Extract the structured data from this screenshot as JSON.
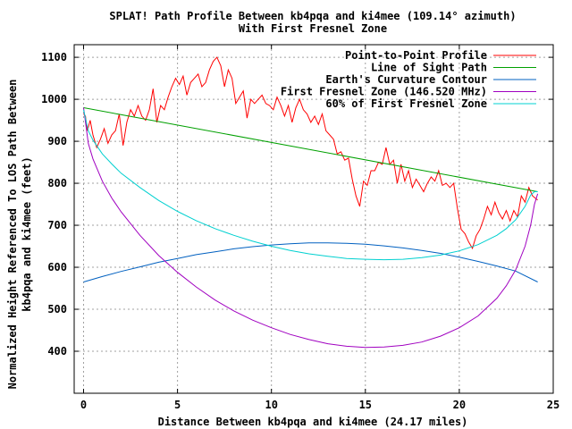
{
  "chart_data": {
    "type": "line",
    "title_line1": "SPLAT! Path Profile Between kb4pqa and ki4mee (109.14° azimuth)",
    "title_line2": "With First Fresnel Zone",
    "xlabel": "Distance Between kb4pqa and ki4mee (24.17 miles)",
    "ylabel_line1": "Normalized Height Referenced To LOS Path Between",
    "ylabel_line2": "kb4pqa and ki4mee (feet)",
    "xlim": [
      -0.5,
      25
    ],
    "ylim": [
      300,
      1130
    ],
    "xticks": [
      0,
      5,
      10,
      15,
      20,
      25
    ],
    "yticks": [
      400,
      500,
      600,
      700,
      800,
      900,
      1000,
      1100
    ],
    "grid": true,
    "legend_position": "top-right",
    "series": [
      {
        "name": "Point-to-Point Profile",
        "color": "#ff0000",
        "x": [
          0.0,
          0.1,
          0.2,
          0.35,
          0.5,
          0.7,
          0.9,
          1.1,
          1.3,
          1.5,
          1.7,
          1.9,
          2.1,
          2.3,
          2.5,
          2.7,
          2.9,
          3.1,
          3.3,
          3.5,
          3.7,
          3.9,
          4.1,
          4.3,
          4.5,
          4.7,
          4.9,
          5.1,
          5.3,
          5.5,
          5.7,
          5.9,
          6.1,
          6.3,
          6.5,
          6.7,
          6.9,
          7.1,
          7.3,
          7.5,
          7.7,
          7.9,
          8.1,
          8.3,
          8.5,
          8.7,
          8.9,
          9.1,
          9.3,
          9.5,
          9.7,
          9.9,
          10.1,
          10.3,
          10.5,
          10.7,
          10.9,
          11.1,
          11.3,
          11.5,
          11.7,
          11.9,
          12.1,
          12.3,
          12.5,
          12.7,
          12.9,
          13.1,
          13.3,
          13.5,
          13.7,
          13.9,
          14.1,
          14.3,
          14.5,
          14.7,
          14.9,
          15.1,
          15.3,
          15.5,
          15.7,
          15.9,
          16.1,
          16.3,
          16.5,
          16.7,
          16.9,
          17.1,
          17.3,
          17.5,
          17.7,
          17.9,
          18.1,
          18.3,
          18.5,
          18.7,
          18.9,
          19.1,
          19.3,
          19.5,
          19.7,
          19.9,
          20.1,
          20.3,
          20.5,
          20.7,
          20.9,
          21.1,
          21.3,
          21.5,
          21.7,
          21.9,
          22.1,
          22.3,
          22.5,
          22.7,
          22.9,
          23.1,
          23.3,
          23.5,
          23.7,
          23.9,
          24.17
        ],
        "y": [
          965,
          960,
          925,
          950,
          915,
          885,
          905,
          930,
          895,
          915,
          925,
          965,
          890,
          945,
          975,
          960,
          985,
          960,
          950,
          975,
          1025,
          945,
          985,
          975,
          1005,
          1030,
          1050,
          1035,
          1055,
          1010,
          1040,
          1050,
          1060,
          1030,
          1040,
          1070,
          1090,
          1100,
          1080,
          1030,
          1070,
          1050,
          990,
          1005,
          1020,
          955,
          1000,
          990,
          1000,
          1010,
          990,
          985,
          975,
          1005,
          985,
          960,
          985,
          945,
          980,
          1000,
          975,
          965,
          945,
          960,
          940,
          965,
          925,
          915,
          905,
          870,
          875,
          855,
          860,
          810,
          770,
          745,
          805,
          795,
          830,
          830,
          850,
          845,
          885,
          845,
          855,
          800,
          845,
          805,
          830,
          790,
          810,
          795,
          780,
          800,
          815,
          805,
          830,
          795,
          800,
          790,
          800,
          740,
          690,
          680,
          660,
          645,
          675,
          690,
          715,
          745,
          725,
          755,
          730,
          715,
          735,
          710,
          735,
          720,
          770,
          755,
          790,
          770,
          760
        ]
      },
      {
        "name": "Line of Sight Path",
        "color": "#00a000",
        "x": [
          0.0,
          24.17
        ],
        "y": [
          980,
          780
        ]
      },
      {
        "name": "Earth's Curvature Contour",
        "color": "#0060c0",
        "x": [
          0.0,
          1.0,
          2.0,
          3.0,
          4.0,
          5.0,
          6.0,
          7.0,
          8.0,
          9.0,
          10.0,
          11.0,
          12.0,
          13.0,
          14.0,
          15.0,
          16.0,
          17.0,
          18.0,
          19.0,
          20.0,
          21.0,
          22.0,
          23.0,
          24.17
        ],
        "y": [
          565,
          578,
          590,
          601,
          612,
          621,
          630,
          637,
          644,
          649,
          653,
          656,
          658,
          658,
          657,
          655,
          651,
          646,
          640,
          633,
          624,
          614,
          603,
          591,
          565
        ]
      },
      {
        "name": "First Fresnel Zone (146.520 MHz)",
        "color": "#a000c0",
        "x": [
          0.0,
          0.25,
          0.5,
          1.0,
          1.5,
          2.0,
          3.0,
          4.0,
          5.0,
          6.0,
          7.0,
          8.0,
          9.0,
          10.0,
          11.0,
          12.0,
          13.0,
          14.0,
          15.0,
          16.0,
          17.0,
          18.0,
          19.0,
          20.0,
          21.0,
          22.0,
          22.5,
          23.0,
          23.5,
          23.8,
          24.0,
          24.17
        ],
        "y": [
          980,
          895,
          858,
          805,
          765,
          732,
          676,
          628,
          588,
          553,
          522,
          496,
          474,
          456,
          440,
          428,
          418,
          412,
          409,
          410,
          414,
          422,
          436,
          456,
          484,
          526,
          556,
          594,
          650,
          701,
          750,
          775
        ]
      },
      {
        "name": "60% of First Fresnel Zone",
        "color": "#00d0d0",
        "x": [
          0.0,
          0.25,
          0.5,
          1.0,
          1.5,
          2.0,
          3.0,
          4.0,
          5.0,
          6.0,
          7.0,
          8.0,
          9.0,
          10.0,
          11.0,
          12.0,
          13.0,
          14.0,
          15.0,
          16.0,
          17.0,
          18.0,
          19.0,
          20.0,
          21.0,
          22.0,
          22.5,
          23.0,
          23.5,
          23.8,
          24.0,
          24.17
        ],
        "y": [
          975,
          925,
          903,
          870,
          846,
          824,
          790,
          759,
          733,
          711,
          692,
          676,
          662,
          650,
          640,
          632,
          626,
          621,
          619,
          618,
          619,
          623,
          629,
          639,
          654,
          676,
          692,
          713,
          745,
          772,
          780,
          780
        ]
      }
    ]
  }
}
